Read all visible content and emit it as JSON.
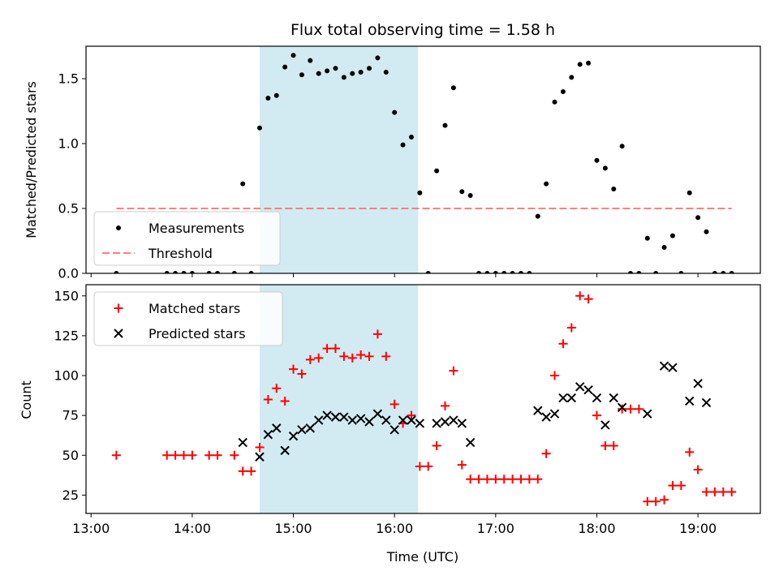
{
  "chart_data": {
    "type": "scatter",
    "title": "Flux total observing time = 1.58 h",
    "xlabel": "Time (UTC)",
    "x_unit": "hours UTC",
    "xlim": [
      "12:57",
      "19:37"
    ],
    "xticks": [
      {
        "t": "13:00",
        "label": "13:00"
      },
      {
        "t": "14:00",
        "label": "14:00"
      },
      {
        "t": "15:00",
        "label": "15:00"
      },
      {
        "t": "16:00",
        "label": "16:00"
      },
      {
        "t": "17:00",
        "label": "17:00"
      },
      {
        "t": "18:00",
        "label": "18:00"
      },
      {
        "t": "19:00",
        "label": "19:00"
      }
    ],
    "highlight_span": {
      "start": "14:40",
      "end": "16:14",
      "color": "#add8e6"
    },
    "panels": [
      {
        "ylabel": "Matched/Predicted stars",
        "ylim": [
          0,
          1.75
        ],
        "yticks": [
          0,
          0.5,
          1.0,
          1.5
        ],
        "ytick_labels": [
          "0.0",
          "0.5",
          "1.0",
          "1.5"
        ],
        "legend": {
          "position": "lower-left"
        },
        "series": [
          {
            "name": "Measurements",
            "marker": "dot",
            "color": "#000000",
            "points": [
              [
                "13:15",
                0
              ],
              [
                "13:45",
                0
              ],
              [
                "13:50",
                0
              ],
              [
                "13:55",
                0
              ],
              [
                "14:00",
                0
              ],
              [
                "14:10",
                0
              ],
              [
                "14:15",
                0
              ],
              [
                "14:25",
                0
              ],
              [
                "14:30",
                0.69
              ],
              [
                "14:35",
                0
              ],
              [
                "14:40",
                1.12
              ],
              [
                "14:45",
                1.35
              ],
              [
                "14:50",
                1.37
              ],
              [
                "14:55",
                1.59
              ],
              [
                "15:00",
                1.68
              ],
              [
                "15:05",
                1.53
              ],
              [
                "15:10",
                1.64
              ],
              [
                "15:15",
                1.54
              ],
              [
                "15:20",
                1.56
              ],
              [
                "15:25",
                1.58
              ],
              [
                "15:30",
                1.51
              ],
              [
                "15:35",
                1.54
              ],
              [
                "15:40",
                1.55
              ],
              [
                "15:45",
                1.58
              ],
              [
                "15:50",
                1.66
              ],
              [
                "15:55",
                1.55
              ],
              [
                "16:00",
                1.24
              ],
              [
                "16:05",
                0.99
              ],
              [
                "16:10",
                1.05
              ],
              [
                "16:15",
                0.62
              ],
              [
                "16:20",
                0
              ],
              [
                "16:25",
                0.79
              ],
              [
                "16:30",
                1.14
              ],
              [
                "16:35",
                1.43
              ],
              [
                "16:40",
                0.63
              ],
              [
                "16:45",
                0.6
              ],
              [
                "16:50",
                0
              ],
              [
                "16:55",
                0
              ],
              [
                "17:00",
                0
              ],
              [
                "17:05",
                0
              ],
              [
                "17:10",
                0
              ],
              [
                "17:15",
                0
              ],
              [
                "17:20",
                0
              ],
              [
                "17:25",
                0.44
              ],
              [
                "17:30",
                0.69
              ],
              [
                "17:35",
                1.32
              ],
              [
                "17:40",
                1.4
              ],
              [
                "17:45",
                1.51
              ],
              [
                "17:50",
                1.61
              ],
              [
                "17:55",
                1.62
              ],
              [
                "18:00",
                0.87
              ],
              [
                "18:05",
                0.81
              ],
              [
                "18:10",
                0.65
              ],
              [
                "18:15",
                0.98
              ],
              [
                "18:20",
                0
              ],
              [
                "18:25",
                0
              ],
              [
                "18:30",
                0.27
              ],
              [
                "18:35",
                0
              ],
              [
                "18:40",
                0.2
              ],
              [
                "18:45",
                0.29
              ],
              [
                "18:50",
                0
              ],
              [
                "18:55",
                0.62
              ],
              [
                "19:00",
                0.43
              ],
              [
                "19:05",
                0.32
              ],
              [
                "19:10",
                0
              ],
              [
                "19:15",
                0
              ],
              [
                "19:20",
                0
              ]
            ]
          },
          {
            "name": "Threshold",
            "marker": "dashed-line",
            "color": "#ff7f7f",
            "points": [
              [
                "13:15",
                0.5
              ],
              [
                "19:20",
                0.5
              ]
            ]
          }
        ]
      },
      {
        "ylabel": "Count",
        "ylim": [
          13.5,
          157
        ],
        "yticks": [
          25,
          50,
          75,
          100,
          125,
          150
        ],
        "ytick_labels": [
          "25",
          "50",
          "75",
          "100",
          "125",
          "150"
        ],
        "legend": {
          "position": "top-left"
        },
        "series": [
          {
            "name": "Matched stars",
            "marker": "plus",
            "color": "#ff0000",
            "points": [
              [
                "13:15",
                50
              ],
              [
                "13:45",
                50
              ],
              [
                "13:50",
                50
              ],
              [
                "13:55",
                50
              ],
              [
                "14:00",
                50
              ],
              [
                "14:10",
                50
              ],
              [
                "14:15",
                50
              ],
              [
                "14:25",
                50
              ],
              [
                "14:30",
                40
              ],
              [
                "14:35",
                40
              ],
              [
                "14:40",
                55
              ],
              [
                "14:45",
                85
              ],
              [
                "14:50",
                92
              ],
              [
                "14:55",
                84
              ],
              [
                "15:00",
                104
              ],
              [
                "15:05",
                101
              ],
              [
                "15:10",
                110
              ],
              [
                "15:15",
                111
              ],
              [
                "15:20",
                117
              ],
              [
                "15:25",
                117
              ],
              [
                "15:30",
                112
              ],
              [
                "15:35",
                111
              ],
              [
                "15:40",
                113
              ],
              [
                "15:45",
                112
              ],
              [
                "15:50",
                126
              ],
              [
                "15:55",
                112
              ],
              [
                "16:00",
                82
              ],
              [
                "16:05",
                70
              ],
              [
                "16:10",
                75
              ],
              [
                "16:15",
                43
              ],
              [
                "16:20",
                43
              ],
              [
                "16:25",
                56
              ],
              [
                "16:30",
                81
              ],
              [
                "16:35",
                103
              ],
              [
                "16:40",
                44
              ],
              [
                "16:45",
                35
              ],
              [
                "16:50",
                35
              ],
              [
                "16:55",
                35
              ],
              [
                "17:00",
                35
              ],
              [
                "17:05",
                35
              ],
              [
                "17:10",
                35
              ],
              [
                "17:15",
                35
              ],
              [
                "17:20",
                35
              ],
              [
                "17:25",
                35
              ],
              [
                "17:30",
                51
              ],
              [
                "17:35",
                100
              ],
              [
                "17:40",
                120
              ],
              [
                "17:45",
                130
              ],
              [
                "17:50",
                150
              ],
              [
                "17:55",
                148
              ],
              [
                "18:00",
                75
              ],
              [
                "18:05",
                56
              ],
              [
                "18:10",
                56
              ],
              [
                "18:15",
                79
              ],
              [
                "18:20",
                79
              ],
              [
                "18:25",
                79
              ],
              [
                "18:30",
                21
              ],
              [
                "18:35",
                21
              ],
              [
                "18:40",
                22
              ],
              [
                "18:45",
                31
              ],
              [
                "18:50",
                31
              ],
              [
                "18:55",
                52
              ],
              [
                "19:00",
                41
              ],
              [
                "19:05",
                27
              ],
              [
                "19:10",
                27
              ],
              [
                "19:15",
                27
              ],
              [
                "19:20",
                27
              ]
            ]
          },
          {
            "name": "Predicted stars",
            "marker": "x",
            "color": "#000000",
            "points": [
              [
                "14:30",
                58
              ],
              [
                "14:40",
                49
              ],
              [
                "14:45",
                63
              ],
              [
                "14:50",
                67
              ],
              [
                "14:55",
                53
              ],
              [
                "15:00",
                62
              ],
              [
                "15:05",
                66
              ],
              [
                "15:10",
                67
              ],
              [
                "15:15",
                72
              ],
              [
                "15:20",
                75
              ],
              [
                "15:25",
                74
              ],
              [
                "15:30",
                74
              ],
              [
                "15:35",
                72
              ],
              [
                "15:40",
                73
              ],
              [
                "15:45",
                71
              ],
              [
                "15:50",
                76
              ],
              [
                "15:55",
                72
              ],
              [
                "16:00",
                66
              ],
              [
                "16:05",
                72
              ],
              [
                "16:10",
                72
              ],
              [
                "16:15",
                70
              ],
              [
                "16:25",
                70
              ],
              [
                "16:30",
                71
              ],
              [
                "16:35",
                72
              ],
              [
                "16:40",
                70
              ],
              [
                "16:45",
                58
              ],
              [
                "17:25",
                78
              ],
              [
                "17:30",
                74
              ],
              [
                "17:35",
                76
              ],
              [
                "17:40",
                86
              ],
              [
                "17:45",
                86
              ],
              [
                "17:50",
                93
              ],
              [
                "17:55",
                91
              ],
              [
                "18:00",
                86
              ],
              [
                "18:05",
                69
              ],
              [
                "18:10",
                86
              ],
              [
                "18:15",
                80
              ],
              [
                "18:30",
                76
              ],
              [
                "18:40",
                106
              ],
              [
                "18:45",
                105
              ],
              [
                "18:55",
                84
              ],
              [
                "19:00",
                95
              ],
              [
                "19:05",
                83
              ]
            ]
          }
        ]
      }
    ]
  }
}
